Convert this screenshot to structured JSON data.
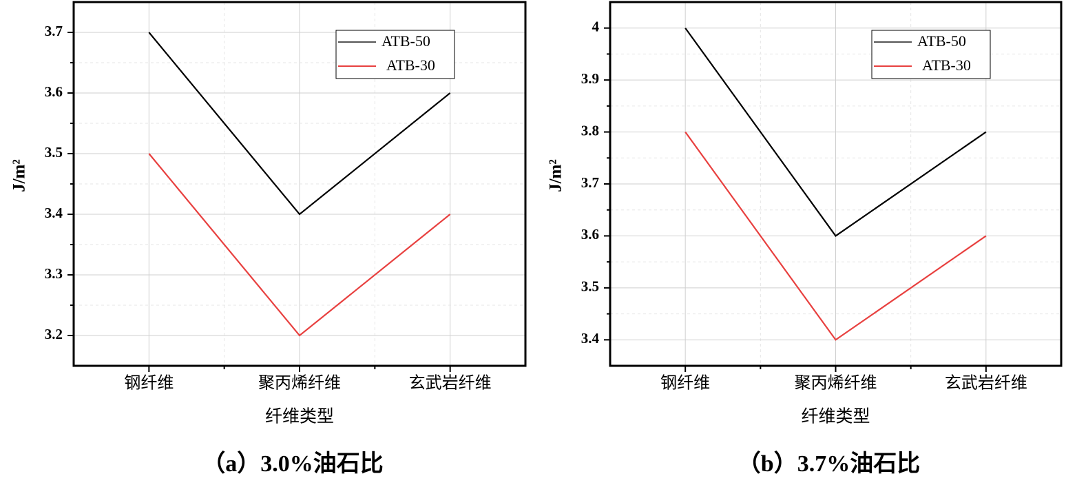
{
  "chart_data": [
    {
      "type": "line",
      "caption": "（a）3.0%油石比",
      "xlabel": "纤维类型",
      "ylabel": "J/m²",
      "categories": [
        "钢纤维",
        "聚丙烯纤维",
        "玄武岩纤维"
      ],
      "series": [
        {
          "name": "ATB-50",
          "color": "#000000",
          "values": [
            3.7,
            3.4,
            3.6
          ]
        },
        {
          "name": "ATB-30",
          "color": "#e8403f",
          "values": [
            3.5,
            3.2,
            3.4
          ]
        }
      ],
      "ylim": [
        3.15,
        3.75
      ],
      "yticks": [
        3.2,
        3.3,
        3.4,
        3.5,
        3.6,
        3.7
      ],
      "grid": true,
      "legend": "upper right"
    },
    {
      "type": "line",
      "caption": "（b）3.7%油石比",
      "xlabel": "纤维类型",
      "ylabel": "J/m²",
      "categories": [
        "钢纤维",
        "聚丙烯纤维",
        "玄武岩纤维"
      ],
      "series": [
        {
          "name": "ATB-50",
          "color": "#000000",
          "values": [
            4.0,
            3.6,
            3.8
          ]
        },
        {
          "name": "ATB-30",
          "color": "#e8403f",
          "values": [
            3.8,
            3.4,
            3.6
          ]
        }
      ],
      "ylim": [
        3.35,
        4.05
      ],
      "yticks": [
        3.4,
        3.5,
        3.6,
        3.7,
        3.8,
        3.9,
        4.0
      ],
      "grid": true,
      "legend": "upper right"
    }
  ]
}
